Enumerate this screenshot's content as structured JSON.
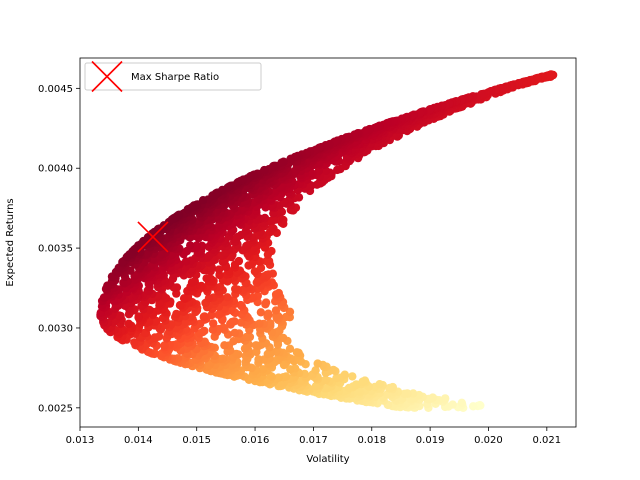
{
  "chart_data": {
    "type": "scatter",
    "title": "",
    "xlabel": "Volatility",
    "ylabel": "Expected Returns",
    "xlim": [
      0.013,
      0.0215
    ],
    "ylim": [
      0.00238,
      0.00469
    ],
    "xticks": [
      0.013,
      0.014,
      0.015,
      0.016,
      0.017,
      0.018,
      0.019,
      0.02,
      0.021
    ],
    "yticks": [
      0.0025,
      0.003,
      0.0035,
      0.004,
      0.0045
    ],
    "xtick_labels": [
      "0.013",
      "0.014",
      "0.015",
      "0.016",
      "0.017",
      "0.018",
      "0.019",
      "0.020",
      "0.021"
    ],
    "ytick_labels": [
      "0.0025",
      "0.0030",
      "0.0035",
      "0.0040",
      "0.0045"
    ],
    "grid": false,
    "colormap": "YlOrRd",
    "colormap_stops": [
      "#ffffcc",
      "#ffeda0",
      "#fed976",
      "#feb24c",
      "#fd8d3c",
      "#fc4e2a",
      "#e31a1c",
      "#bd0026",
      "#800026"
    ],
    "frontier": {
      "min_vol": 0.01335,
      "return_at_min_vol": 0.00308,
      "upper_tip": [
        0.0211,
        0.00459
      ],
      "lower_tip": [
        0.0189,
        0.00248
      ]
    },
    "max_sharpe": {
      "x": 0.01425,
      "y": 0.00357,
      "marker": "x",
      "color": "#ff0000"
    },
    "legend": {
      "position": "top-left",
      "entries": [
        {
          "label": "Max Sharpe Ratio",
          "marker": "x",
          "color": "#ff0000"
        }
      ]
    }
  }
}
